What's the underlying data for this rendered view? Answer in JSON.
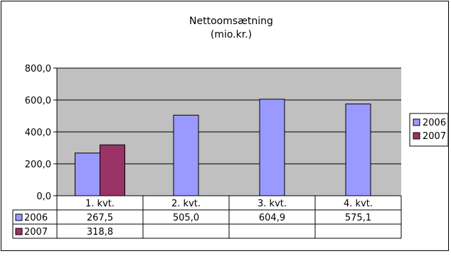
{
  "chart_data": {
    "type": "bar",
    "title": "Nettoomsætning",
    "subtitle": "(mio.kr.)",
    "categories": [
      "1. kvt.",
      "2. kvt.",
      "3. kvt.",
      "4. kvt."
    ],
    "series": [
      {
        "name": "2006",
        "color": "#9999ff",
        "values": [
          267.5,
          505.0,
          604.9,
          575.1
        ],
        "labels": [
          "267,5",
          "505,0",
          "604,9",
          "575,1"
        ]
      },
      {
        "name": "2007",
        "color": "#993366",
        "values": [
          318.8,
          null,
          null,
          null
        ],
        "labels": [
          "318,8",
          "",
          "",
          ""
        ]
      }
    ],
    "ylim": [
      0,
      800
    ],
    "yticks": [
      0,
      200,
      400,
      600,
      800
    ],
    "ytick_labels": [
      "0,0",
      "200,0",
      "400,0",
      "600,0",
      "800,0"
    ],
    "plot_background": "#c0c0c0",
    "grid": true,
    "legend_position": "right",
    "data_table": true
  }
}
